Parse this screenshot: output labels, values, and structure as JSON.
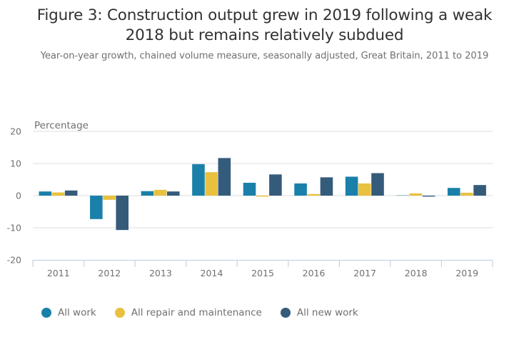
{
  "title": "Figure 3: Construction output grew in 2019 following a weak 2018 but remains relatively subdued",
  "title_lines": [
    "Figure 3: Construction output grew in 2019 following a weak",
    "2018 but remains relatively subdued"
  ],
  "subtitle": "Year-on-year growth, chained volume measure, seasonally adjusted, Great Britain, 2011 to 2019",
  "chart_data": {
    "type": "bar",
    "title": "Figure 3: Construction output grew in 2019 following a weak 2018 but remains relatively subdued",
    "subtitle": "Year-on-year growth, chained volume measure, seasonally adjusted, Great Britain, 2011 to 2019",
    "xlabel": "",
    "ylabel": "Percentage",
    "ylim": [
      -20,
      20
    ],
    "yticks": [
      20,
      10,
      0,
      -10,
      -20
    ],
    "ytick_labels": [
      "20",
      "10",
      "0",
      "-10",
      "-20"
    ],
    "grid": true,
    "legend_position": "bottom-left",
    "categories": [
      "2011",
      "2012",
      "2013",
      "2014",
      "2015",
      "2016",
      "2017",
      "2018",
      "2019"
    ],
    "series": [
      {
        "name": "All work",
        "color": "#1a80aa",
        "values": [
          1.3,
          -7.3,
          1.4,
          9.8,
          4.0,
          3.8,
          5.9,
          0.1,
          2.4
        ]
      },
      {
        "name": "All repair and maintenance",
        "color": "#e9c13f",
        "values": [
          1.0,
          -1.3,
          1.8,
          7.3,
          -0.3,
          0.5,
          3.8,
          0.7,
          0.9
        ]
      },
      {
        "name": "All new work",
        "color": "#355b7b",
        "values": [
          1.6,
          -10.7,
          1.3,
          11.7,
          6.6,
          5.7,
          7.0,
          -0.3,
          3.3
        ]
      }
    ]
  },
  "legend": {
    "items": [
      {
        "label": "All work",
        "color": "#1a80aa"
      },
      {
        "label": "All repair and maintenance",
        "color": "#e9c13f"
      },
      {
        "label": "All new work",
        "color": "#355b7b"
      }
    ]
  }
}
